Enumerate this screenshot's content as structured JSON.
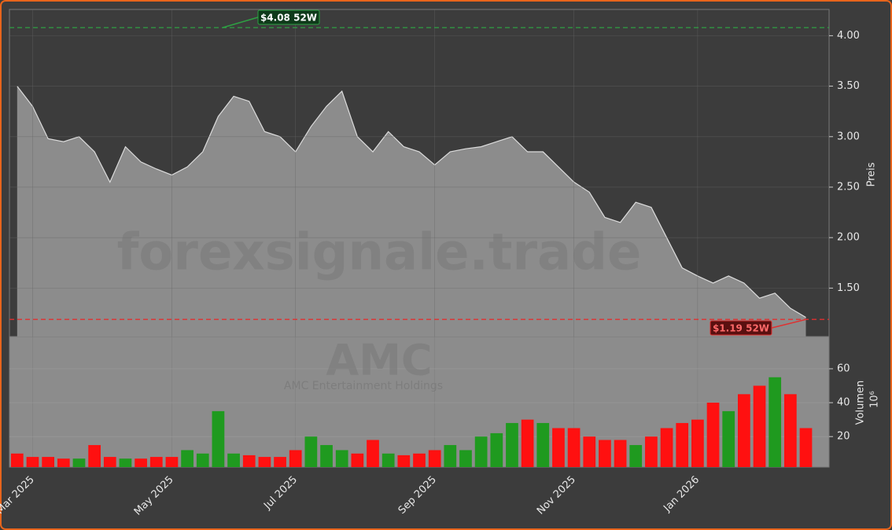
{
  "chart_data": [
    {
      "type": "area",
      "ylabel": "Preis",
      "watermark": "forexsignale.trade",
      "categories": [
        null,
        "Mar 2025",
        null,
        null,
        null,
        null,
        null,
        null,
        null,
        null,
        "May 2025",
        null,
        null,
        null,
        null,
        null,
        null,
        null,
        "Jul 2025",
        null,
        null,
        null,
        null,
        null,
        null,
        null,
        null,
        "Sep 2025",
        null,
        null,
        null,
        null,
        null,
        null,
        null,
        null,
        "Nov 2025",
        null,
        null,
        null,
        null,
        null,
        null,
        null,
        "Jan 2026",
        null,
        null,
        null,
        null,
        null,
        null,
        null,
        null
      ],
      "series": [
        {
          "name": "AMC",
          "color": "#8c8c8c",
          "values": [
            3.5,
            3.3,
            2.98,
            2.95,
            3.0,
            2.85,
            2.55,
            2.9,
            2.75,
            2.68,
            2.62,
            2.7,
            2.85,
            3.2,
            3.4,
            3.35,
            3.05,
            3.0,
            2.85,
            3.1,
            3.3,
            3.45,
            3.0,
            2.85,
            3.05,
            2.9,
            2.85,
            2.72,
            2.85,
            2.88,
            2.9,
            2.95,
            3.0,
            2.85,
            2.85,
            2.7,
            2.55,
            2.45,
            2.2,
            2.15,
            2.35,
            2.3,
            2.0,
            1.7,
            1.62,
            1.55,
            1.62,
            1.55,
            1.4,
            1.45,
            1.3,
            1.21,
            null
          ]
        }
      ],
      "annotations": [
        {
          "text": "$4.08 52W",
          "value": 4.08,
          "color": "#2ea043"
        },
        {
          "text": "$1.19 52W",
          "value": 1.19,
          "color": "#e03030"
        }
      ],
      "ylim": [
        1.02,
        4.26
      ],
      "yticks": [
        {
          "value": 1.5,
          "label": "1.50"
        },
        {
          "value": 2,
          "label": "2.00"
        },
        {
          "value": 2.5,
          "label": "2.50"
        },
        {
          "value": 3,
          "label": "3.00"
        },
        {
          "value": 3.5,
          "label": "3.50"
        },
        {
          "value": 4,
          "label": "4.00"
        }
      ],
      "grid": true
    },
    {
      "type": "bar",
      "ylabel": "Volumen",
      "yunit": "10⁶",
      "title": "AMC",
      "subtitle": "AMC Entertainment Holdings",
      "up_color": "#1f9a1f",
      "down_color": "#ff1010",
      "values": [
        10,
        8,
        8,
        7,
        7,
        15,
        8,
        7,
        7,
        8,
        8,
        12,
        10,
        35,
        10,
        9,
        8,
        8,
        12,
        20,
        15,
        12,
        10,
        18,
        10,
        9,
        10,
        12,
        15,
        12,
        20,
        22,
        28,
        30,
        28,
        25,
        25,
        20,
        18,
        18,
        15,
        20,
        25,
        28,
        30,
        40,
        35,
        45,
        50,
        55,
        45,
        25,
        null
      ],
      "ylim": [
        2,
        79
      ],
      "yticks": [
        20,
        40,
        60
      ],
      "grid": true
    }
  ]
}
